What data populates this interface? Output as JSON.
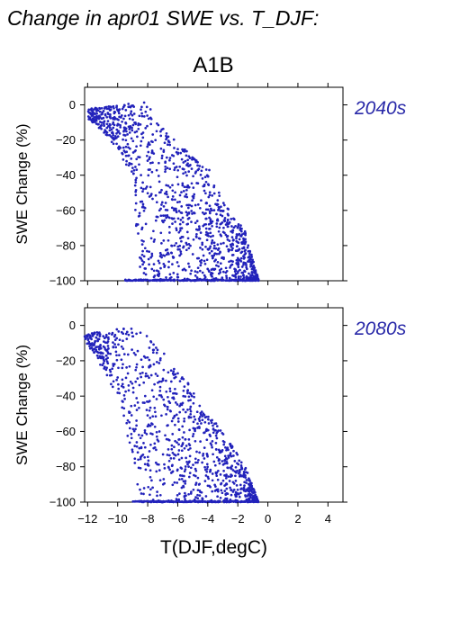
{
  "title": "Change in apr01 SWE vs. T_DJF:",
  "scenario": "A1B",
  "colors": {
    "points": "#2222bb",
    "period_label": "#2828a8",
    "axes": "#000000"
  },
  "chart_data": [
    {
      "type": "scatter",
      "panel_label": "2040s",
      "ylabel": "SWE Change (%)",
      "xlabel": "",
      "xlim": [
        -12.2,
        5
      ],
      "ylim": [
        -100,
        10
      ],
      "yticks": [
        0,
        -20,
        -40,
        -60,
        -80,
        -100
      ],
      "xticks": [
        -12,
        -10,
        -8,
        -6,
        -4,
        -2,
        0,
        2,
        4
      ],
      "show_xtick_labels": false,
      "grid": false,
      "point_envelope": {
        "x_min": -12.0,
        "x_max": -0.6,
        "top_edge": [
          [
            -12.0,
            -2
          ],
          [
            -10.0,
            0
          ],
          [
            -8.0,
            2
          ],
          [
            -7.0,
            -12
          ],
          [
            -6.0,
            -22
          ],
          [
            -4.0,
            -35
          ],
          [
            -3.0,
            -55
          ],
          [
            -1.5,
            -72
          ],
          [
            -0.6,
            -100
          ]
        ],
        "bottom_edge": [
          [
            -12.0,
            -8
          ],
          [
            -11.0,
            -15
          ],
          [
            -10.0,
            -25
          ],
          [
            -9.0,
            -42
          ],
          [
            -8.5,
            -100
          ],
          [
            -0.6,
            -100
          ]
        ],
        "floor_value": -100,
        "floor_x_range": [
          -9.5,
          -0.6
        ],
        "approx_points": 1400
      }
    },
    {
      "type": "scatter",
      "panel_label": "2080s",
      "ylabel": "SWE Change (%)",
      "xlabel": "T(DJF,degC)",
      "xlim": [
        -12.2,
        5
      ],
      "ylim": [
        -100,
        10
      ],
      "yticks": [
        0,
        -20,
        -40,
        -60,
        -80,
        -100
      ],
      "xticks": [
        -12,
        -10,
        -8,
        -6,
        -4,
        -2,
        0,
        2,
        4
      ],
      "xtick_labels": [
        "−12",
        "−10",
        "−8",
        "−6",
        "−4",
        "−2",
        "0",
        "2",
        "4"
      ],
      "show_xtick_labels": true,
      "grid": false,
      "point_envelope": {
        "x_min": -12.2,
        "x_max": -0.6,
        "top_edge": [
          [
            -12.2,
            -5
          ],
          [
            -10.0,
            -2
          ],
          [
            -9.0,
            2
          ],
          [
            -7.0,
            -15
          ],
          [
            -5.0,
            -35
          ],
          [
            -3.0,
            -60
          ],
          [
            -1.5,
            -80
          ],
          [
            -0.6,
            -100
          ]
        ],
        "bottom_edge": [
          [
            -12.2,
            -8
          ],
          [
            -11.0,
            -25
          ],
          [
            -10.0,
            -40
          ],
          [
            -9.0,
            -75
          ],
          [
            -8.5,
            -100
          ],
          [
            -0.6,
            -100
          ]
        ],
        "floor_value": -100,
        "floor_x_range": [
          -9.0,
          -0.6
        ],
        "approx_points": 1200
      }
    }
  ]
}
